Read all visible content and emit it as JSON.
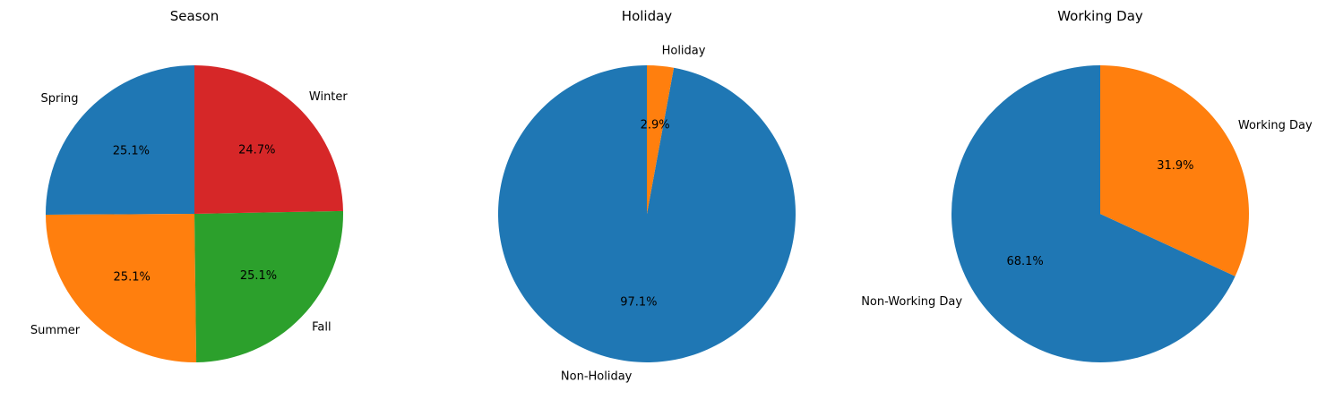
{
  "chart_data": [
    {
      "type": "pie",
      "title": "Season",
      "start_angle_deg": 90,
      "direction": "counterclockwise",
      "slices": [
        {
          "label": "Spring",
          "value": 25.1,
          "pct_label": "25.1%",
          "color": "#1f77b4"
        },
        {
          "label": "Summer",
          "value": 25.1,
          "pct_label": "25.1%",
          "color": "#ff7f0e"
        },
        {
          "label": "Fall",
          "value": 25.1,
          "pct_label": "25.1%",
          "color": "#2ca02c"
        },
        {
          "label": "Winter",
          "value": 24.7,
          "pct_label": "24.7%",
          "color": "#d62728"
        }
      ]
    },
    {
      "type": "pie",
      "title": "Holiday",
      "start_angle_deg": 90,
      "direction": "counterclockwise",
      "slices": [
        {
          "label": "Non-Holiday",
          "value": 97.1,
          "pct_label": "97.1%",
          "color": "#1f77b4"
        },
        {
          "label": "Holiday",
          "value": 2.9,
          "pct_label": "2.9%",
          "color": "#ff7f0e"
        }
      ]
    },
    {
      "type": "pie",
      "title": "Working Day",
      "start_angle_deg": 90,
      "direction": "counterclockwise",
      "slices": [
        {
          "label": "Non-Working Day",
          "value": 68.1,
          "pct_label": "68.1%",
          "color": "#1f77b4"
        },
        {
          "label": "Working Day",
          "value": 31.9,
          "pct_label": "31.9%",
          "color": "#ff7f0e"
        }
      ]
    }
  ]
}
